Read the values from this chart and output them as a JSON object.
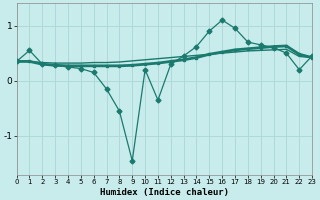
{
  "xlabel": "Humidex (Indice chaleur)",
  "bg_color": "#c8ecec",
  "line_color": "#1a7a6e",
  "grid_color": "#b0d8d8",
  "x": [
    0,
    1,
    2,
    3,
    4,
    5,
    6,
    7,
    8,
    9,
    10,
    11,
    12,
    13,
    14,
    15,
    16,
    17,
    18,
    19,
    20,
    21,
    22,
    23
  ],
  "y_zigzag": [
    0.35,
    0.55,
    0.3,
    0.28,
    0.25,
    0.22,
    0.15,
    -0.15,
    -0.55,
    -1.45,
    0.2,
    -0.35,
    0.3,
    0.45,
    0.62,
    0.9,
    1.1,
    0.95,
    0.7,
    0.65,
    0.6,
    0.5,
    0.2,
    0.45
  ],
  "y_trend": [
    0.35,
    0.35,
    0.3,
    0.28,
    0.27,
    0.27,
    0.27,
    0.27,
    0.27,
    0.28,
    0.3,
    0.32,
    0.35,
    0.38,
    0.42,
    0.48,
    0.52,
    0.56,
    0.58,
    0.6,
    0.62,
    0.63,
    0.48,
    0.42
  ],
  "y_flat": [
    0.35,
    0.35,
    0.33,
    0.32,
    0.32,
    0.32,
    0.33,
    0.33,
    0.34,
    0.36,
    0.38,
    0.4,
    0.42,
    0.44,
    0.46,
    0.48,
    0.5,
    0.52,
    0.54,
    0.55,
    0.56,
    0.57,
    0.44,
    0.42
  ],
  "xlim": [
    0,
    23
  ],
  "ylim": [
    -1.7,
    1.4
  ],
  "yticks": [
    -1,
    0,
    1
  ],
  "xticks": [
    0,
    1,
    2,
    3,
    4,
    5,
    6,
    7,
    8,
    9,
    10,
    11,
    12,
    13,
    14,
    15,
    16,
    17,
    18,
    19,
    20,
    21,
    22,
    23
  ]
}
